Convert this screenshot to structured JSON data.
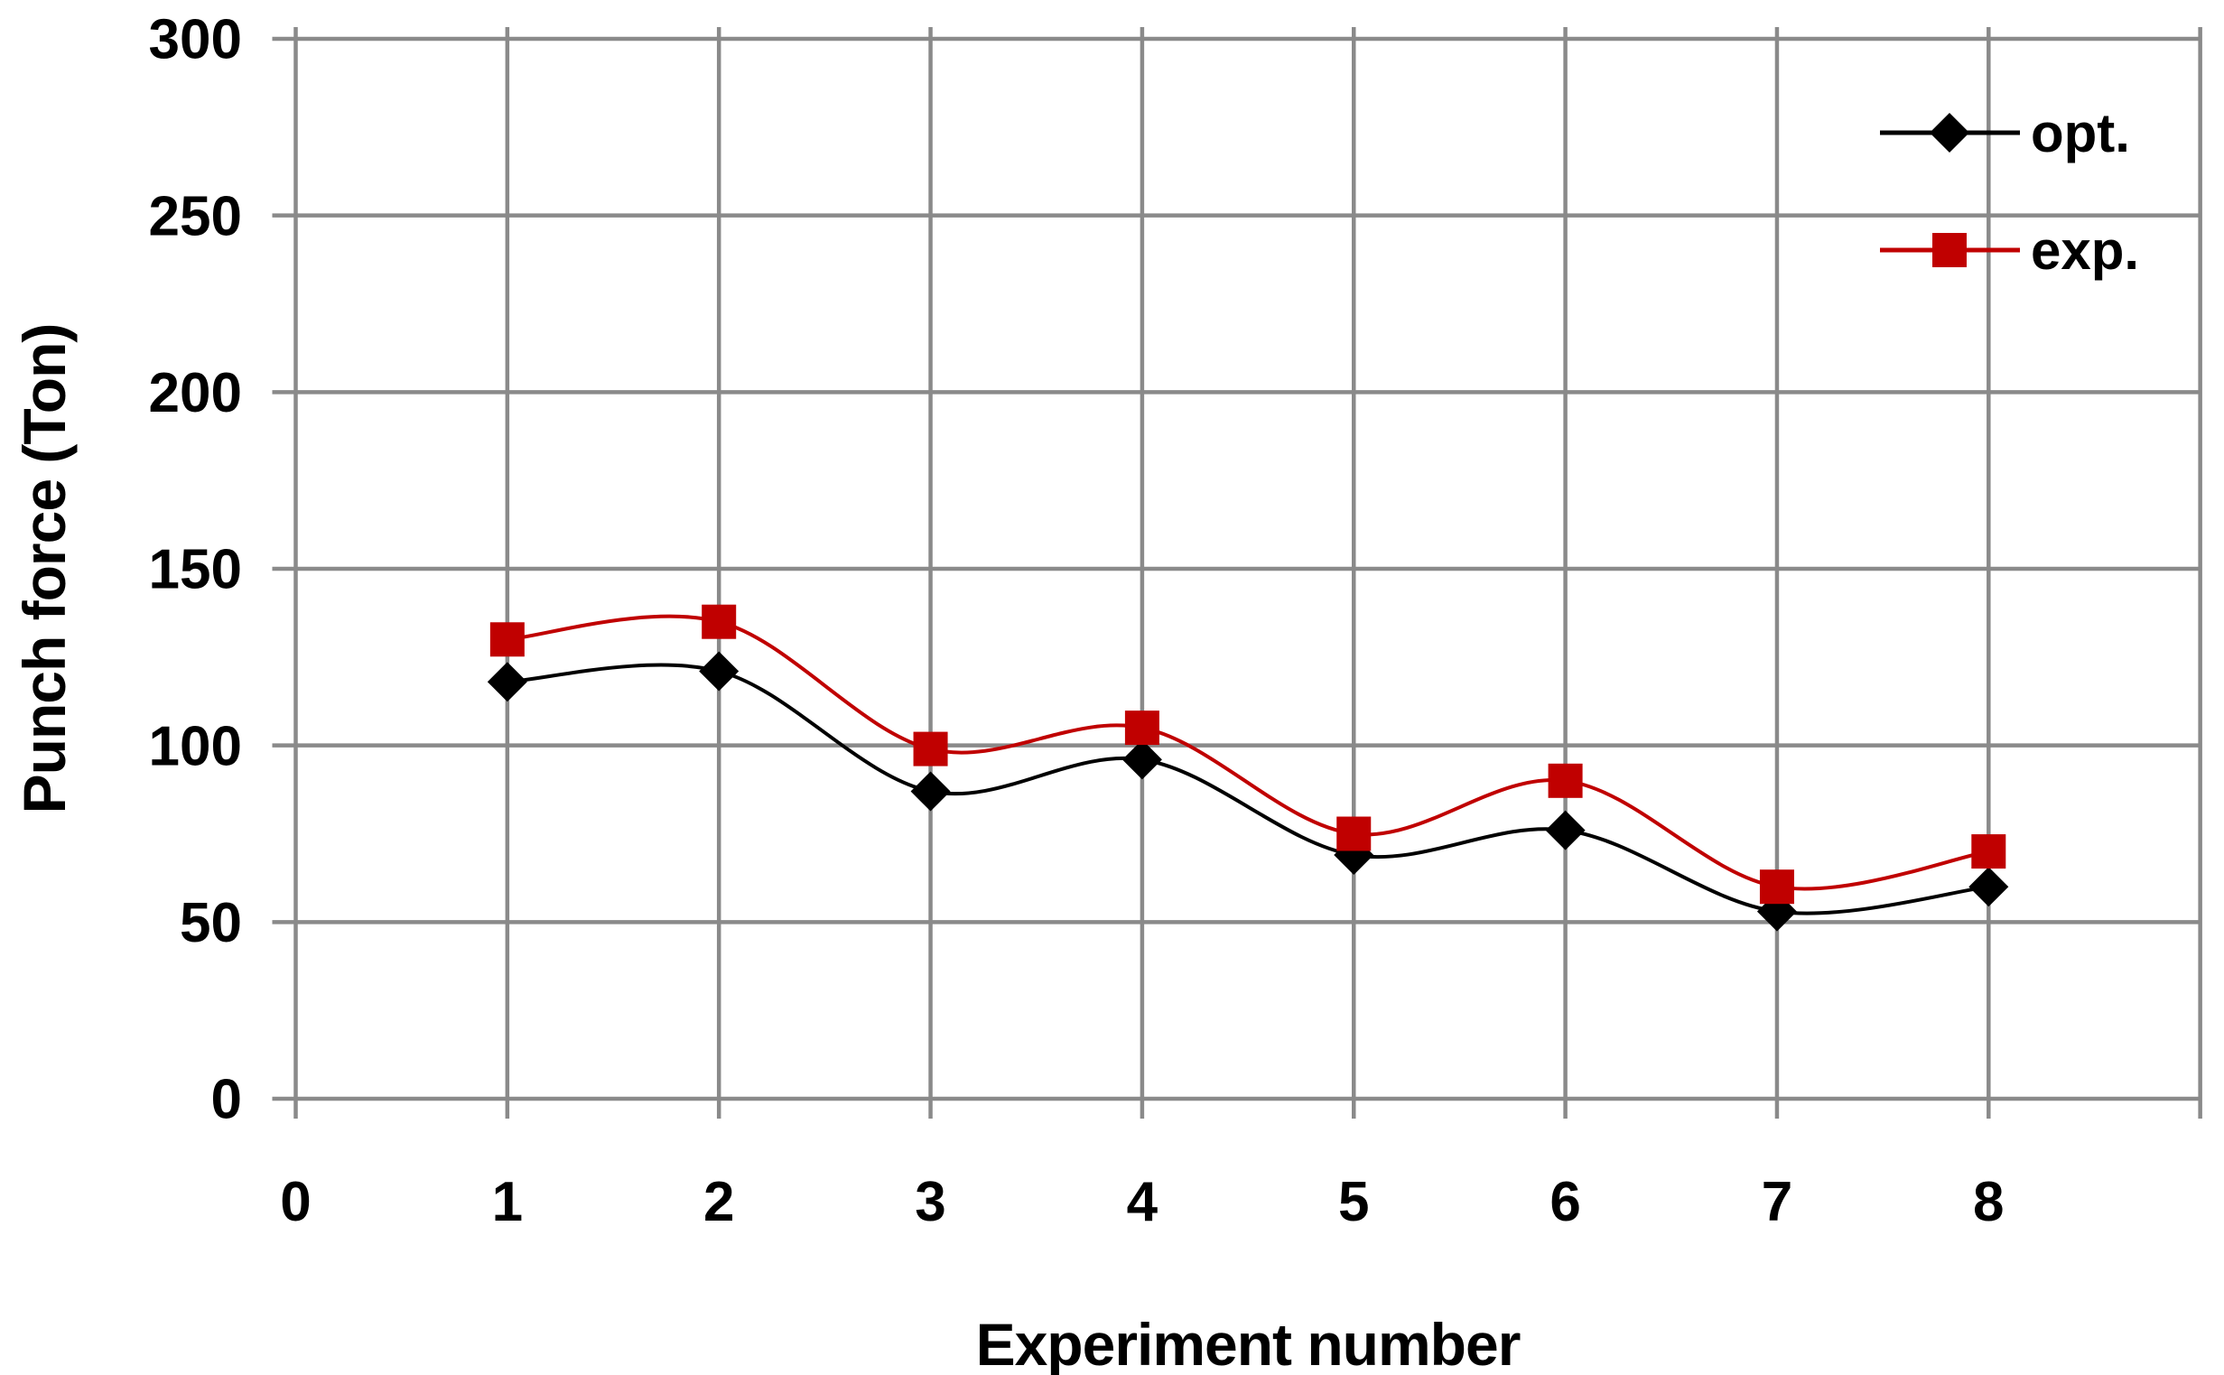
{
  "figure": {
    "background": "#ffffff",
    "text_color": "#000000",
    "gridline_color": "#8a8a8a"
  },
  "chart_data": {
    "type": "line",
    "title": "",
    "xlabel": "Experiment number",
    "ylabel": "Punch force (Ton)",
    "x": [
      1,
      2,
      3,
      4,
      5,
      6,
      7,
      8
    ],
    "series": [
      {
        "name": "opt.",
        "color": "#000000",
        "marker": "diamond",
        "marker_color": "#000000",
        "values": [
          118,
          121,
          87,
          96,
          69,
          76,
          53,
          60
        ]
      },
      {
        "name": "exp.",
        "color": "#c00000",
        "marker": "square",
        "marker_color": "#c00000",
        "values": [
          130,
          135,
          99,
          105,
          75,
          90,
          60,
          70
        ]
      }
    ],
    "xlim": [
      0,
      9
    ],
    "ylim": [
      0,
      300
    ],
    "xticks": [
      0,
      1,
      2,
      3,
      4,
      5,
      6,
      7,
      8
    ],
    "yticks": [
      0,
      50,
      100,
      150,
      200,
      250,
      300
    ],
    "grid": true,
    "smooth_lines": true,
    "legend_position": "top-right",
    "legend": [
      "opt.",
      "exp."
    ]
  }
}
